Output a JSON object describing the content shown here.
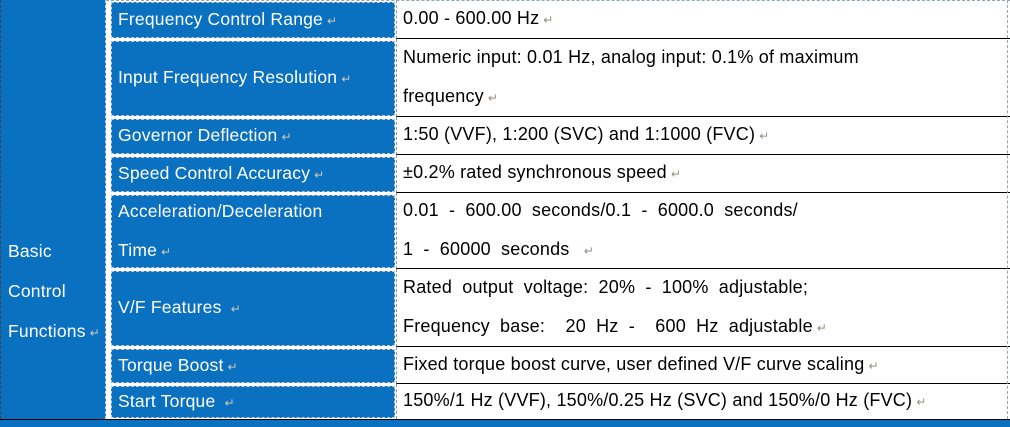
{
  "section": {
    "label": "Basic Control Functions"
  },
  "rows": [
    {
      "label_lines": [
        "Frequency Control Range"
      ],
      "value_lines": [
        "0.00 - 600.00 Hz"
      ],
      "justified": false
    },
    {
      "label_lines": [
        "Input Frequency Resolution"
      ],
      "value_lines": [
        "Numeric input: 0.01 Hz, analog input: 0.1% of maximum",
        "frequency"
      ],
      "justified": false
    },
    {
      "label_lines": [
        "Governor Deflection"
      ],
      "value_lines": [
        "1:50 (VVF), 1:200 (SVC) and 1:1000 (FVC)"
      ],
      "justified": false
    },
    {
      "label_lines": [
        "Speed Control Accuracy"
      ],
      "value_lines": [
        "±0.2% rated synchronous speed"
      ],
      "justified": false
    },
    {
      "label_lines": [
        "Acceleration/Deceleration",
        "Time"
      ],
      "value_lines": [
        "0.01 - 600.00 seconds/0.1 - 6000.0 seconds/",
        "1 - 60000 seconds "
      ],
      "justified": true
    },
    {
      "label_lines": [
        "V/F Features "
      ],
      "value_lines": [
        "Rated output voltage: 20% - 100% adjustable;",
        "Frequency base:  20 Hz -  600 Hz adjustable"
      ],
      "justified": true
    },
    {
      "label_lines": [
        "Torque Boost"
      ],
      "value_lines": [
        "Fixed torque boost curve, user defined V/F curve scaling"
      ],
      "justified": false
    },
    {
      "label_lines": [
        "Start Torque "
      ],
      "value_lines": [
        "150%/1 Hz (VVF), 150%/0.25 Hz (SVC) and 150%/0 Hz (FVC)"
      ],
      "justified": false
    }
  ],
  "marks": {
    "paragraph_mark": "↵"
  },
  "colors": {
    "cell_blue": "#0a70c0",
    "label_text": "#ffffff",
    "value_text": "#000000",
    "row_line": "#000000",
    "gridline_dash": "#9aa0a8",
    "outer_dash": "#93a3bd"
  }
}
